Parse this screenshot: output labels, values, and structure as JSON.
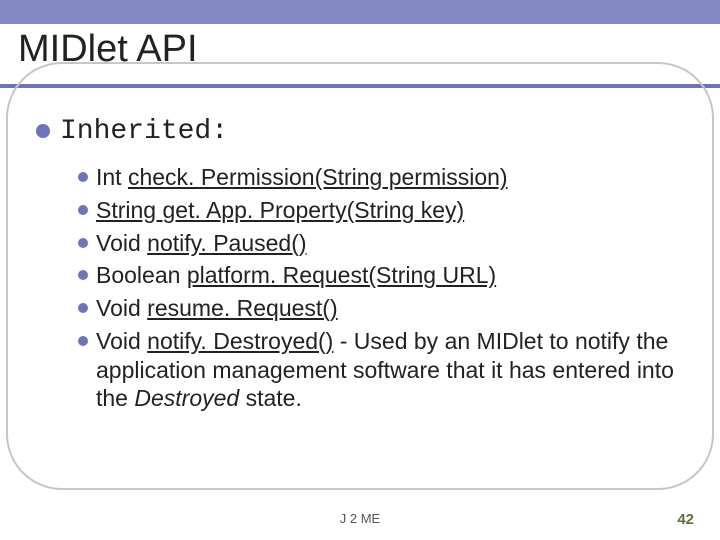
{
  "colors": {
    "band": "#6f73b8",
    "band_alpha": 0.85,
    "rule": "#6f73b8",
    "bullet": "#6f73b8",
    "pagenum": "#5a6e3c",
    "oval_border": "#c7c7c7",
    "background": "#ffffff"
  },
  "title": "MIDlet API",
  "section_label": "Inherited:",
  "items": [
    {
      "type": "Int",
      "sig": "check. Permission(String permission)",
      "underline_sig": true,
      "tail": ""
    },
    {
      "type": "String",
      "sig": "get. App. Property(String key)",
      "underline_sig": true,
      "tail": "",
      "underline_type": true
    },
    {
      "type": "Void",
      "sig": "notify. Paused()",
      "underline_sig": true,
      "tail": ""
    },
    {
      "type": "Boolean",
      "sig": "platform. Request(String URL)",
      "underline_sig": true,
      "tail": ""
    },
    {
      "type": "Void",
      "sig": "resume. Request()",
      "underline_sig": true,
      "tail": ""
    },
    {
      "type": "Void",
      "sig": "notify. Destroyed()",
      "underline_sig": true,
      "tail": " -  Used by an MIDlet to notify the application management software that it has entered into the ",
      "tail_italic": "Destroyed",
      "tail_after": " state."
    }
  ],
  "footer": "J 2 ME",
  "page_number": "42",
  "typography": {
    "title_fontsize": 38,
    "lvl1_fontsize": 28,
    "lvl2_fontsize": 23,
    "footer_fontsize": 13,
    "pagenum_fontsize": 15
  }
}
